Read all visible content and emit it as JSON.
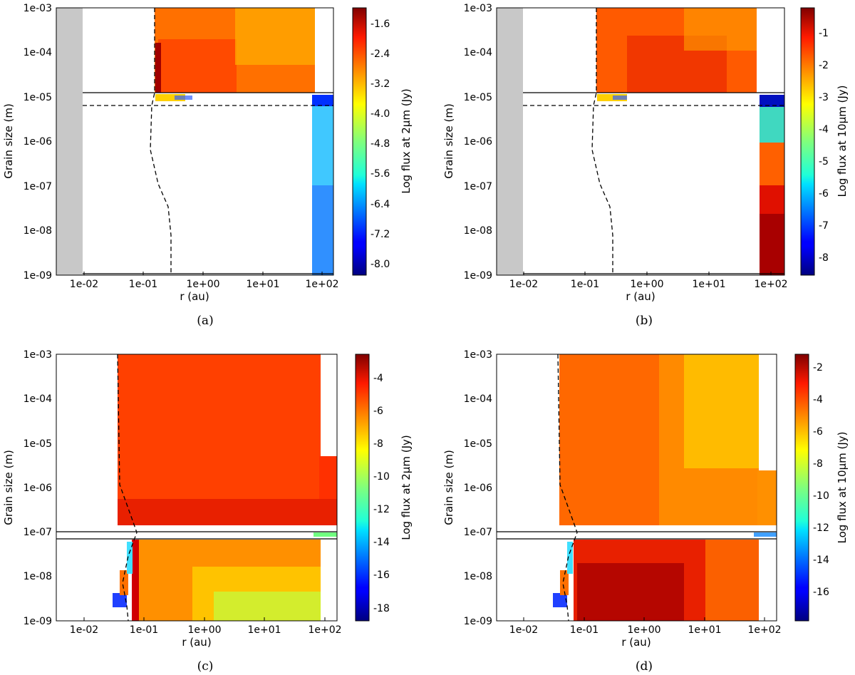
{
  "figure": {
    "panels": [
      {
        "caption": "(a)",
        "xlabel": "r (au)",
        "ylabel": "Grain size (m)",
        "x_ticks": [
          "1e-02",
          "1e-01",
          "1e+00",
          "1e+01",
          "1e+02"
        ],
        "y_ticks": [
          "1e-03",
          "1e-04",
          "1e-05",
          "1e-06",
          "1e-07",
          "1e-08",
          "1e-09"
        ],
        "colorbar": {
          "label": "Log flux at 2μm (Jy)",
          "ticks": [
            "-1.6",
            "-2.4",
            "-3.2",
            "-4.0",
            "-4.8",
            "-5.6",
            "-6.4",
            "-7.2",
            "-8.0"
          ]
        }
      },
      {
        "caption": "(b)",
        "xlabel": "r (au)",
        "ylabel": "Grain size (m)",
        "x_ticks": [
          "1e-02",
          "1e-01",
          "1e+00",
          "1e+01",
          "1e+02"
        ],
        "y_ticks": [
          "1e-03",
          "1e-04",
          "1e-05",
          "1e-06",
          "1e-07",
          "1e-08",
          "1e-09"
        ],
        "colorbar": {
          "label": "Log flux at 10μm (Jy)",
          "ticks": [
            "-1",
            "-2",
            "-3",
            "-4",
            "-5",
            "-6",
            "-7",
            "-8"
          ]
        }
      },
      {
        "caption": "(c)",
        "xlabel": "r (au)",
        "ylabel": "Grain size (m)",
        "x_ticks": [
          "1e-02",
          "1e-01",
          "1e+00",
          "1e+01",
          "1e+02"
        ],
        "y_ticks": [
          "1e-03",
          "1e-04",
          "1e-05",
          "1e-06",
          "1e-07",
          "1e-08",
          "1e-09"
        ],
        "colorbar": {
          "label": "Log flux at 2μm (Jy)",
          "ticks": [
            "-4",
            "-6",
            "-8",
            "-10",
            "-12",
            "-14",
            "-16",
            "-18"
          ]
        }
      },
      {
        "caption": "(d)",
        "xlabel": "r (au)",
        "ylabel": "Grain size (m)",
        "x_ticks": [
          "1e-02",
          "1e-01",
          "1e+00",
          "1e+01",
          "1e+02"
        ],
        "y_ticks": [
          "1e-03",
          "1e-04",
          "1e-05",
          "1e-06",
          "1e-07",
          "1e-08",
          "1e-09"
        ],
        "colorbar": {
          "label": "Log flux at 10μm (Jy)",
          "ticks": [
            "-2",
            "-4",
            "-6",
            "-8",
            "-10",
            "-12",
            "-14",
            "-16"
          ]
        }
      }
    ]
  },
  "chart_data": [
    {
      "type": "heatmap",
      "panel": "a",
      "xscale": "log",
      "yscale": "log",
      "xlim": [
        0.005,
        100
      ],
      "ylim": [
        1e-09,
        0.001
      ],
      "colorbar_range": [
        -8.4,
        -1.3
      ],
      "grey_region_x": [
        0.005,
        0.012
      ],
      "hot_region": {
        "x": [
          0.17,
          40
        ],
        "y": [
          1.2e-05,
          0.001
        ],
        "peak": -1.5,
        "edge": -3.6
      },
      "cold_region": {
        "x": [
          45,
          100
        ],
        "y": [
          1e-09,
          9e-06
        ],
        "peak": -5.9,
        "edge": -7.6
      },
      "thin_band": {
        "x": [
          0.17,
          0.6
        ],
        "y": [
          7e-06,
          1e-05
        ]
      },
      "solid_hlines": [
        1.2e-05,
        1.15e-09
      ],
      "dashed_hlines": [
        6.8e-06
      ],
      "dashed_curve": {
        "x": [
          0.17,
          0.17,
          0.155,
          0.16,
          0.3,
          0.42,
          0.45,
          0.45
        ],
        "y": [
          0.001,
          1.2e-05,
          6.8e-06,
          8e-07,
          2.5e-07,
          6e-08,
          1e-08,
          1.15e-09
        ]
      }
    },
    {
      "type": "heatmap",
      "panel": "b",
      "xscale": "log",
      "yscale": "log",
      "xlim": [
        0.005,
        100
      ],
      "ylim": [
        1e-09,
        0.001
      ],
      "colorbar_range": [
        -8.6,
        -0.3
      ],
      "grey_region_x": [
        0.005,
        0.012
      ],
      "hot_region": {
        "x": [
          0.17,
          40
        ],
        "y": [
          1.2e-05,
          0.001
        ],
        "peak": -0.9,
        "edge": -2.8
      },
      "cold_region": {
        "x": [
          45,
          100
        ],
        "y": [
          1e-09,
          9e-06
        ],
        "peak": -0.5,
        "edge": -8.0
      },
      "thin_band": {
        "x": [
          0.17,
          0.6
        ],
        "y": [
          7e-06,
          1e-05
        ]
      },
      "solid_hlines": [
        1.2e-05,
        1.15e-09
      ],
      "dashed_hlines": [
        6.8e-06
      ],
      "dashed_curve": {
        "x": [
          0.17,
          0.17,
          0.155,
          0.16,
          0.3,
          0.42,
          0.45,
          0.45
        ],
        "y": [
          0.001,
          1.2e-05,
          6.8e-06,
          8e-07,
          2.5e-07,
          6e-08,
          1e-08,
          1.15e-09
        ]
      }
    },
    {
      "type": "heatmap",
      "panel": "c",
      "xscale": "log",
      "yscale": "log",
      "xlim": [
        0.005,
        100
      ],
      "ylim": [
        1e-09,
        0.001
      ],
      "colorbar_range": [
        -19,
        -2.8
      ],
      "upper_region": {
        "x": [
          0.06,
          50
        ],
        "y": [
          3e-07,
          0.001
        ],
        "value": -5.0
      },
      "lower_region": {
        "x": [
          0.08,
          50
        ],
        "y": [
          1e-09,
          1.8e-07
        ],
        "value_inner": -4.5,
        "value_outer": -9.0
      },
      "solid_hlines": [
        2.5e-07,
        1.9e-07
      ],
      "dashed_curve": {
        "x": [
          0.045,
          0.05,
          0.06,
          0.08,
          0.075,
          0.065,
          0.07
        ],
        "y": [
          0.001,
          1e-05,
          1.5e-06,
          2.5e-07,
          1e-07,
          3e-08,
          1e-09
        ]
      }
    },
    {
      "type": "heatmap",
      "panel": "d",
      "xscale": "log",
      "yscale": "log",
      "xlim": [
        0.005,
        100
      ],
      "ylim": [
        1e-09,
        0.001
      ],
      "colorbar_range": [
        -18,
        -1.2
      ],
      "upper_region": {
        "x": [
          0.06,
          50
        ],
        "y": [
          3e-07,
          0.001
        ],
        "value_inner": -5.0,
        "value_outer": -7.0
      },
      "lower_region": {
        "x": [
          0.08,
          50
        ],
        "y": [
          1e-09,
          1.8e-07
        ],
        "value_inner": -2.0,
        "value_outer": -5.0
      },
      "solid_hlines": [
        2.5e-07,
        1.9e-07
      ],
      "dashed_curve": {
        "x": [
          0.045,
          0.05,
          0.06,
          0.08,
          0.075,
          0.065,
          0.07
        ],
        "y": [
          0.001,
          1e-05,
          1.5e-06,
          2.5e-07,
          1e-07,
          3e-08,
          1e-09
        ]
      }
    }
  ]
}
